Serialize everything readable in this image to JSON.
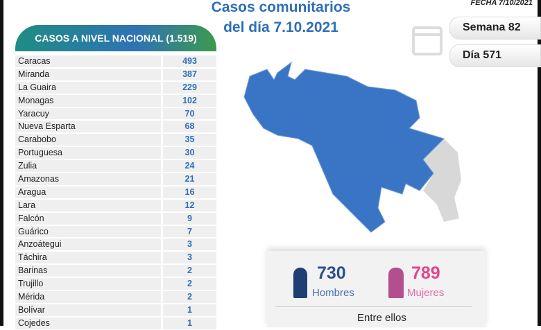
{
  "title": {
    "line1": "Casos comunitarios",
    "line2": "del día 7.10.2021"
  },
  "fecha": "FECHA 7/10/2021",
  "semana": "Semana 82",
  "dia": "Día 571",
  "table": {
    "header": "CASOS A NIVEL NACIONAL (1.519)",
    "rows": [
      [
        "Caracas",
        "493"
      ],
      [
        "Miranda",
        "387"
      ],
      [
        "La Guaira",
        "229"
      ],
      [
        "Monagas",
        "102"
      ],
      [
        "Yaracuy",
        "70"
      ],
      [
        "Nueva Esparta",
        "68"
      ],
      [
        "Carabobo",
        "35"
      ],
      [
        "Portuguesa",
        "30"
      ],
      [
        "Zulia",
        "24"
      ],
      [
        "Amazonas",
        "21"
      ],
      [
        "Aragua",
        "16"
      ],
      [
        "Lara",
        "12"
      ],
      [
        "Falcón",
        "9"
      ],
      [
        "Guárico",
        "7"
      ],
      [
        "Anzoátegui",
        "3"
      ],
      [
        "Táchira",
        "3"
      ],
      [
        "Barinas",
        "2"
      ],
      [
        "Trujillo",
        "2"
      ],
      [
        "Mérida",
        "2"
      ],
      [
        "Bolívar",
        "1"
      ],
      [
        "Cojedes",
        "1"
      ]
    ]
  },
  "gender": {
    "men_count": "730",
    "men_label": "Hombres",
    "women_count": "789",
    "women_label": "Mujeres",
    "between": "Entre ellos"
  },
  "colors": {
    "blue": "#2e6fb7",
    "navy": "#1f3f73",
    "pink": "#e5438f",
    "map": "#3a74c4"
  }
}
